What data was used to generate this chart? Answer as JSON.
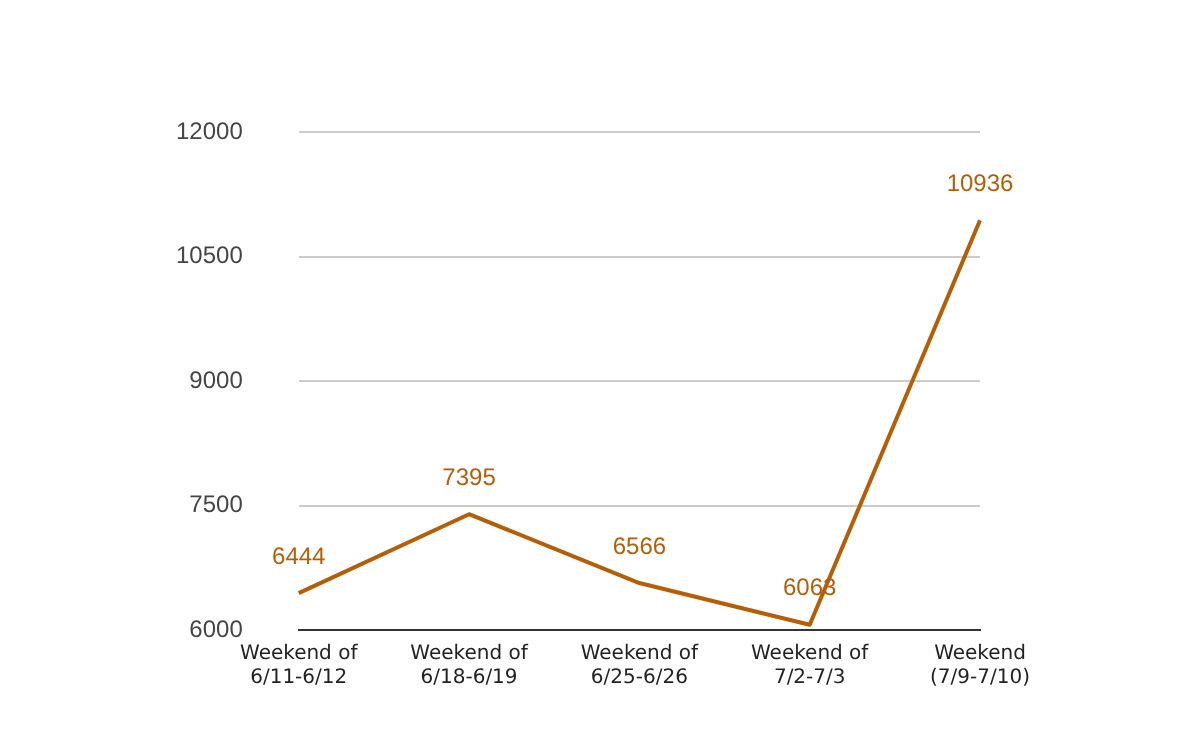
{
  "chart_data": {
    "type": "line",
    "categories": [
      "Weekend of 6/11-6/12",
      "Weekend of 6/18-6/19",
      "Weekend of 6/25-6/26",
      "Weekend of 7/2-7/3",
      "Weekend (7/9-7/10)"
    ],
    "series": [
      {
        "color": "#b45f06",
        "values": [
          6444,
          7395,
          6566,
          6063,
          10936
        ]
      }
    ],
    "ylim": [
      6000,
      12000
    ],
    "yticks": [
      6000,
      7500,
      9000,
      10500,
      12000
    ],
    "grid": "y",
    "legend": false,
    "marker": "none",
    "line_style": "solid",
    "data_labels": true
  }
}
